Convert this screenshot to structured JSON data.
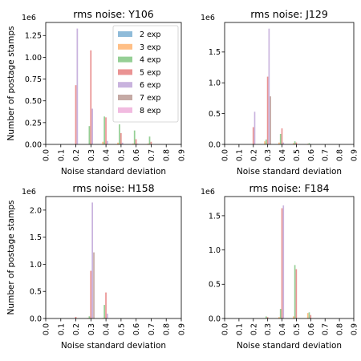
{
  "legend": {
    "colors": [
      "#1f77b4",
      "#ff7f0e",
      "#2ca02c",
      "#d62728",
      "#9467bd",
      "#8c564b",
      "#e377c2"
    ],
    "alpha": 0.5,
    "placement": "upper-right of first panel"
  },
  "chart_data": [
    {
      "type": "bar",
      "title": "rms noise: Y106",
      "xlabel": "Noise standard deviation",
      "ylabel": "Number of postage stamps",
      "multiplier_label": "1e6",
      "xlim": [
        0.0,
        0.9
      ],
      "ylim": [
        0,
        1.4
      ],
      "xticks": [
        "0.0",
        "0.1",
        "0.2",
        "0.3",
        "0.4",
        "0.5",
        "0.6",
        "0.7",
        "0.8",
        "0.9"
      ],
      "yticks": [
        "0.00",
        "0.25",
        "0.50",
        "0.75",
        "1.00",
        "1.25"
      ],
      "ytick_values": [
        0,
        0.25,
        0.5,
        0.75,
        1.0,
        1.25
      ],
      "bin_centers": [
        0.2,
        0.3,
        0.4,
        0.5,
        0.6,
        0.7
      ],
      "series": [
        {
          "name": "2 exp",
          "values": [
            0,
            0,
            0,
            0,
            0,
            0
          ]
        },
        {
          "name": "3 exp",
          "values": [
            0,
            0,
            0.03,
            0.02,
            0.01,
            0.01
          ]
        },
        {
          "name": "4 exp",
          "values": [
            0,
            0.21,
            0.32,
            0.23,
            0.16,
            0.09
          ]
        },
        {
          "name": "5 exp",
          "values": [
            0.68,
            1.08,
            0.31,
            0.13,
            0.06,
            0.03
          ]
        },
        {
          "name": "6 exp",
          "values": [
            1.33,
            0.41,
            0.04,
            0.02,
            0.01,
            0
          ]
        },
        {
          "name": "7 exp",
          "values": [
            0,
            0,
            0,
            0,
            0,
            0
          ]
        },
        {
          "name": "8 exp",
          "values": [
            0,
            0,
            0,
            0,
            0,
            0
          ]
        }
      ]
    },
    {
      "type": "bar",
      "title": "rms noise: J129",
      "xlabel": "Noise standard deviation",
      "ylabel": "",
      "multiplier_label": "1e6",
      "xlim": [
        0.0,
        0.9
      ],
      "ylim": [
        0,
        1.98
      ],
      "xticks": [
        "0.0",
        "0.1",
        "0.2",
        "0.3",
        "0.4",
        "0.5",
        "0.6",
        "0.7",
        "0.8",
        "0.9"
      ],
      "yticks": [
        "0.0",
        "0.5",
        "1.0",
        "1.5"
      ],
      "ytick_values": [
        0,
        0.5,
        1.0,
        1.5
      ],
      "bin_centers": [
        0.2,
        0.3,
        0.4,
        0.5,
        0.6
      ],
      "series": [
        {
          "name": "2 exp",
          "values": [
            0,
            0,
            0,
            0,
            0
          ]
        },
        {
          "name": "3 exp",
          "values": [
            0,
            0.05,
            0.03,
            0.02,
            0.01
          ]
        },
        {
          "name": "4 exp",
          "values": [
            0,
            0.08,
            0.17,
            0.05,
            0.02
          ]
        },
        {
          "name": "5 exp",
          "values": [
            0.28,
            1.1,
            0.26,
            0.03,
            0
          ]
        },
        {
          "name": "6 exp",
          "values": [
            0.53,
            1.88,
            0.03,
            0,
            0
          ]
        },
        {
          "name": "7 exp",
          "values": [
            0,
            0.78,
            0,
            0,
            0
          ]
        },
        {
          "name": "8 exp",
          "values": [
            0,
            0,
            0,
            0,
            0
          ]
        }
      ]
    },
    {
      "type": "bar",
      "title": "rms noise: H158",
      "xlabel": "Noise standard deviation",
      "ylabel": "Number of postage stamps",
      "multiplier_label": "1e6",
      "xlim": [
        0.0,
        0.9
      ],
      "ylim": [
        0,
        2.25
      ],
      "xticks": [
        "0.0",
        "0.1",
        "0.2",
        "0.3",
        "0.4",
        "0.5",
        "0.6",
        "0.7",
        "0.8",
        "0.9"
      ],
      "yticks": [
        "0.0",
        "0.5",
        "1.0",
        "1.5",
        "2.0"
      ],
      "ytick_values": [
        0,
        0.5,
        1.0,
        1.5,
        2.0
      ],
      "bin_centers": [
        0.2,
        0.3,
        0.4
      ],
      "series": [
        {
          "name": "2 exp",
          "values": [
            0,
            0,
            0
          ]
        },
        {
          "name": "3 exp",
          "values": [
            0,
            0.01,
            0.01
          ]
        },
        {
          "name": "4 exp",
          "values": [
            0,
            0.04,
            0.25
          ]
        },
        {
          "name": "5 exp",
          "values": [
            0.03,
            0.88,
            0.48
          ]
        },
        {
          "name": "6 exp",
          "values": [
            0,
            2.14,
            0.09
          ]
        },
        {
          "name": "7 exp",
          "values": [
            0,
            1.22,
            0
          ]
        },
        {
          "name": "8 exp",
          "values": [
            0,
            0,
            0
          ]
        }
      ]
    },
    {
      "type": "bar",
      "title": "rms noise: F184",
      "xlabel": "Noise standard deviation",
      "ylabel": "",
      "multiplier_label": "1e6",
      "xlim": [
        0.0,
        0.9
      ],
      "ylim": [
        0,
        1.78
      ],
      "xticks": [
        "0.0",
        "0.1",
        "0.2",
        "0.3",
        "0.4",
        "0.5",
        "0.6",
        "0.7",
        "0.8",
        "0.9"
      ],
      "yticks": [
        "0.0",
        "0.5",
        "1.0",
        "1.5"
      ],
      "ytick_values": [
        0,
        0.5,
        1.0,
        1.5
      ],
      "bin_centers": [
        0.3,
        0.4,
        0.5,
        0.6
      ],
      "series": [
        {
          "name": "2 exp",
          "values": [
            0,
            0,
            0,
            0
          ]
        },
        {
          "name": "3 exp",
          "values": [
            0,
            0.02,
            0.03,
            0.08
          ]
        },
        {
          "name": "4 exp",
          "values": [
            0.03,
            0.14,
            0.78,
            0.09
          ]
        },
        {
          "name": "5 exp",
          "values": [
            0.02,
            1.61,
            0.72,
            0.05
          ]
        },
        {
          "name": "6 exp",
          "values": [
            0,
            1.65,
            0,
            0
          ]
        },
        {
          "name": "7 exp",
          "values": [
            0,
            0,
            0,
            0
          ]
        },
        {
          "name": "8 exp",
          "values": [
            0,
            0,
            0,
            0
          ]
        }
      ]
    }
  ]
}
